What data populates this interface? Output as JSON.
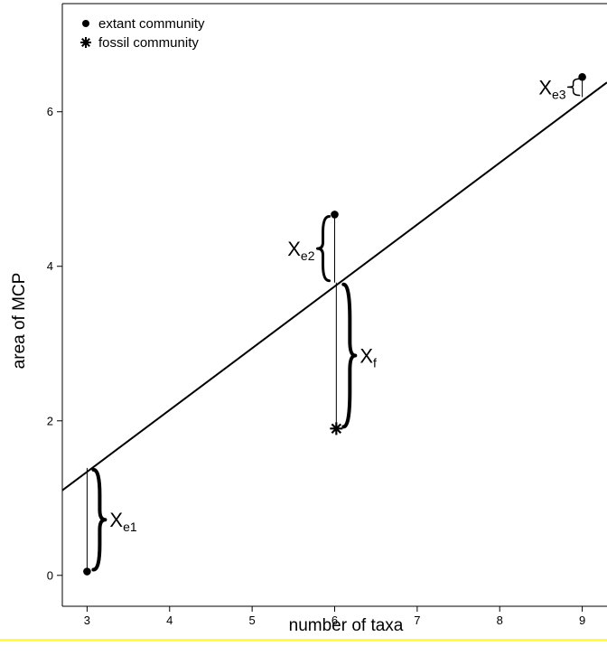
{
  "chart_data": {
    "type": "scatter",
    "title": "",
    "xlabel": "number of taxa",
    "ylabel": "area of MCP",
    "xlim": [
      2.7,
      9.3
    ],
    "ylim": [
      -0.4,
      7.4
    ],
    "x_ticks": [
      3,
      4,
      5,
      6,
      7,
      8,
      9
    ],
    "y_ticks": [
      0,
      2,
      4,
      6
    ],
    "grid": false,
    "legend_position": "top-left",
    "legend": [
      {
        "marker": "dot",
        "label": "extant community"
      },
      {
        "marker": "star",
        "label": "fossil community"
      }
    ],
    "series": [
      {
        "name": "extant community",
        "marker": "dot",
        "points": [
          [
            3,
            0.05
          ],
          [
            6,
            4.67
          ],
          [
            9,
            6.45
          ]
        ]
      },
      {
        "name": "fossil community",
        "marker": "star",
        "points": [
          [
            6.02,
            1.9
          ]
        ]
      }
    ],
    "regression_line": {
      "x": [
        2.7,
        9.3
      ],
      "y": [
        1.1,
        6.38
      ]
    },
    "annotations": [
      {
        "main": "X",
        "sub": "e1",
        "x": 3,
        "y_from": 0.05,
        "y_to": 1.39
      },
      {
        "main": "X",
        "sub": "e2",
        "x": 6,
        "y_from": 3.79,
        "y_to": 4.67
      },
      {
        "main": "X",
        "sub": "f",
        "x": 6.02,
        "y_from": 1.9,
        "y_to": 3.79
      },
      {
        "main": "X",
        "sub": "e3",
        "x": 9,
        "y_from": 6.19,
        "y_to": 6.45
      }
    ]
  }
}
